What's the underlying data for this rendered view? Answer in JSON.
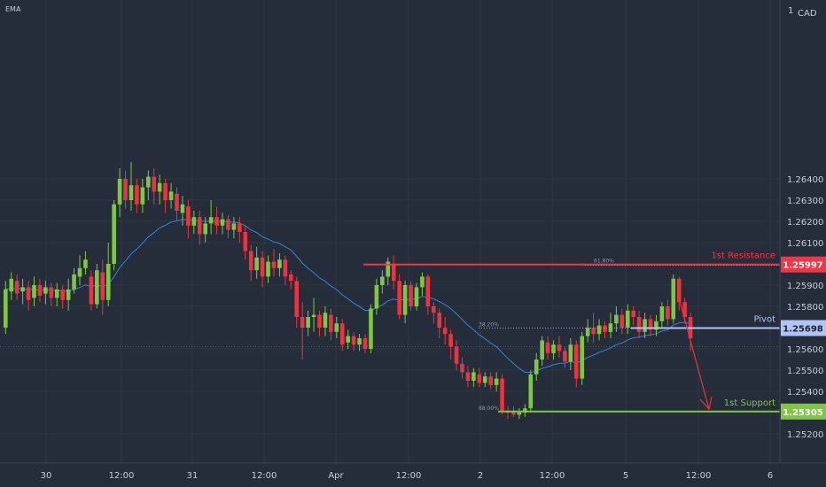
{
  "chart_data": {
    "type": "candlestick",
    "indicator_label": "EMA",
    "currency_label": "CAD",
    "scale_top_label": "1",
    "ylim": [
      1.2517,
      1.2652
    ],
    "y_ticks": [
      "1.26400",
      "1.26300",
      "1.26200",
      "1.26100",
      "1.25900",
      "1.25800",
      "1.25600",
      "1.25500",
      "1.25400",
      "1.25200"
    ],
    "x_ticks": [
      "30",
      "12:00",
      "31",
      "12:00",
      "Apr",
      "12:00",
      "2",
      "12:00",
      "5",
      "12:00",
      "6"
    ],
    "levels": [
      {
        "name": "1st Resistance",
        "value": 1.25997,
        "price_label": "1.25997",
        "color": "#f23645",
        "fib_label": "61.80%"
      },
      {
        "name": "Pivot",
        "value": 1.25698,
        "price_label": "1.25698",
        "color": "#b2c3f5",
        "fib_label": "38.20%"
      },
      {
        "name": "1st Support",
        "value": 1.25305,
        "price_label": "1.25305",
        "color": "#7ec643",
        "fib_label": "88.00%"
      }
    ],
    "current_price_line": 1.2561,
    "colors": {
      "up": "#7ec643",
      "down": "#e8353f",
      "ema": "#2f86d6",
      "background": "#252d3b",
      "text": "#c8ccd6"
    },
    "candles": [
      [
        1.257,
        1.2588,
        1.2567,
        1.2592
      ],
      [
        1.2587,
        1.2593,
        1.2583,
        1.2596
      ],
      [
        1.2592,
        1.2586,
        1.2583,
        1.2595
      ],
      [
        1.2587,
        1.2589,
        1.2581,
        1.2593
      ],
      [
        1.2589,
        1.2583,
        1.2578,
        1.2592
      ],
      [
        1.2584,
        1.259,
        1.258,
        1.2594
      ],
      [
        1.259,
        1.2585,
        1.2582,
        1.2593
      ],
      [
        1.2586,
        1.2589,
        1.2581,
        1.2592
      ],
      [
        1.2589,
        1.2584,
        1.258,
        1.2591
      ],
      [
        1.2584,
        1.2588,
        1.258,
        1.2591
      ],
      [
        1.2588,
        1.2583,
        1.2579,
        1.259
      ],
      [
        1.2583,
        1.2588,
        1.2578,
        1.2593
      ],
      [
        1.2588,
        1.2595,
        1.2586,
        1.2598
      ],
      [
        1.2594,
        1.2598,
        1.259,
        1.2604
      ],
      [
        1.2598,
        1.2602,
        1.2595,
        1.2606
      ],
      [
        1.2594,
        1.2581,
        1.2578,
        1.2597
      ],
      [
        1.2581,
        1.2597,
        1.2579,
        1.26
      ],
      [
        1.2596,
        1.2583,
        1.2576,
        1.2602
      ],
      [
        1.2583,
        1.26,
        1.258,
        1.261
      ],
      [
        1.26,
        1.2628,
        1.2597,
        1.263
      ],
      [
        1.2628,
        1.264,
        1.2622,
        1.2645
      ],
      [
        1.264,
        1.263,
        1.2626,
        1.2644
      ],
      [
        1.263,
        1.2637,
        1.2625,
        1.2648
      ],
      [
        1.2637,
        1.2628,
        1.2624,
        1.264
      ],
      [
        1.2628,
        1.2636,
        1.2624,
        1.264
      ],
      [
        1.2636,
        1.2641,
        1.263,
        1.2644
      ],
      [
        1.2641,
        1.2634,
        1.2628,
        1.2645
      ],
      [
        1.2634,
        1.2638,
        1.2628,
        1.2642
      ],
      [
        1.2638,
        1.263,
        1.2624,
        1.264
      ],
      [
        1.263,
        1.2634,
        1.2626,
        1.2638
      ],
      [
        1.2633,
        1.2625,
        1.262,
        1.2636
      ],
      [
        1.2624,
        1.2628,
        1.2618,
        1.2632
      ],
      [
        1.2627,
        1.2618,
        1.2612,
        1.263
      ],
      [
        1.2618,
        1.2622,
        1.2614,
        1.2625
      ],
      [
        1.2622,
        1.2614,
        1.2609,
        1.2625
      ],
      [
        1.2614,
        1.2619,
        1.261,
        1.2622
      ],
      [
        1.2619,
        1.2622,
        1.2614,
        1.263
      ],
      [
        1.2622,
        1.2618,
        1.2614,
        1.2627
      ],
      [
        1.2618,
        1.2621,
        1.2614,
        1.2624
      ],
      [
        1.2621,
        1.2616,
        1.2612,
        1.2623
      ],
      [
        1.2616,
        1.2619,
        1.2612,
        1.2622
      ],
      [
        1.2619,
        1.2615,
        1.261,
        1.2622
      ],
      [
        1.2615,
        1.2606,
        1.2602,
        1.2618
      ],
      [
        1.2606,
        1.2597,
        1.2592,
        1.2609
      ],
      [
        1.2597,
        1.2603,
        1.2593,
        1.2608
      ],
      [
        1.2603,
        1.2594,
        1.2589,
        1.2606
      ],
      [
        1.2594,
        1.2601,
        1.2591,
        1.2604
      ],
      [
        1.2601,
        1.2598,
        1.2594,
        1.2607
      ],
      [
        1.2598,
        1.2602,
        1.2594,
        1.2605
      ],
      [
        1.2602,
        1.2594,
        1.259,
        1.2604
      ],
      [
        1.2595,
        1.2592,
        1.2588,
        1.2597
      ],
      [
        1.2592,
        1.2575,
        1.257,
        1.2594
      ],
      [
        1.2575,
        1.257,
        1.2555,
        1.2582
      ],
      [
        1.257,
        1.2575,
        1.2566,
        1.2578
      ],
      [
        1.2575,
        1.2576,
        1.2568,
        1.2584
      ],
      [
        1.2576,
        1.257,
        1.2566,
        1.2578
      ],
      [
        1.257,
        1.2577,
        1.2566,
        1.258
      ],
      [
        1.2576,
        1.2568,
        1.2564,
        1.2579
      ],
      [
        1.2568,
        1.2572,
        1.2565,
        1.2575
      ],
      [
        1.2572,
        1.2562,
        1.2559,
        1.2574
      ],
      [
        1.2563,
        1.2566,
        1.256,
        1.2569
      ],
      [
        1.2566,
        1.2562,
        1.2559,
        1.2568
      ],
      [
        1.2562,
        1.2565,
        1.2559,
        1.2567
      ],
      [
        1.2565,
        1.256,
        1.2558,
        1.2567
      ],
      [
        1.256,
        1.2579,
        1.2558,
        1.2581
      ],
      [
        1.2579,
        1.259,
        1.2576,
        1.2593
      ],
      [
        1.259,
        1.2594,
        1.2586,
        1.2597
      ],
      [
        1.2594,
        1.2601,
        1.259,
        1.2603
      ],
      [
        1.26,
        1.2592,
        1.2588,
        1.2604
      ],
      [
        1.2592,
        1.2576,
        1.2574,
        1.2595
      ],
      [
        1.2576,
        1.259,
        1.2572,
        1.2592
      ],
      [
        1.259,
        1.258,
        1.2578,
        1.2592
      ],
      [
        1.258,
        1.2589,
        1.2578,
        1.2591
      ],
      [
        1.2589,
        1.2594,
        1.2585,
        1.2596
      ],
      [
        1.2594,
        1.258,
        1.2576,
        1.2595
      ],
      [
        1.258,
        1.2577,
        1.2572,
        1.2582
      ],
      [
        1.2577,
        1.257,
        1.2565,
        1.2579
      ],
      [
        1.257,
        1.2567,
        1.2562,
        1.2575
      ],
      [
        1.2567,
        1.2561,
        1.2555,
        1.2569
      ],
      [
        1.2561,
        1.2553,
        1.255,
        1.2564
      ],
      [
        1.2553,
        1.2549,
        1.2546,
        1.2556
      ],
      [
        1.2549,
        1.2545,
        1.2542,
        1.2552
      ],
      [
        1.2545,
        1.2549,
        1.2542,
        1.2551
      ],
      [
        1.2548,
        1.2544,
        1.2542,
        1.2551
      ],
      [
        1.2544,
        1.2547,
        1.2542,
        1.2549
      ],
      [
        1.2547,
        1.2543,
        1.2541,
        1.2549
      ],
      [
        1.2543,
        1.2546,
        1.254,
        1.2549
      ],
      [
        1.2546,
        1.2531,
        1.2529,
        1.2548
      ],
      [
        1.2531,
        1.253,
        1.2527,
        1.2533
      ],
      [
        1.2531,
        1.2529,
        1.2528,
        1.2533
      ],
      [
        1.2529,
        1.253,
        1.2527,
        1.2532
      ],
      [
        1.253,
        1.2532,
        1.2528,
        1.2534
      ],
      [
        1.2532,
        1.2548,
        1.253,
        1.255
      ],
      [
        1.2548,
        1.2555,
        1.2545,
        1.2558
      ],
      [
        1.2555,
        1.2564,
        1.2552,
        1.2566
      ],
      [
        1.2563,
        1.2558,
        1.2555,
        1.2566
      ],
      [
        1.2558,
        1.2562,
        1.2555,
        1.2564
      ],
      [
        1.2562,
        1.2559,
        1.2556,
        1.2566
      ],
      [
        1.2559,
        1.2554,
        1.2551,
        1.2561
      ],
      [
        1.2554,
        1.2562,
        1.255,
        1.2565
      ],
      [
        1.2562,
        1.2546,
        1.2542,
        1.2564
      ],
      [
        1.2546,
        1.2566,
        1.2543,
        1.2568
      ],
      [
        1.2566,
        1.257,
        1.2563,
        1.2574
      ],
      [
        1.257,
        1.2567,
        1.2563,
        1.2577
      ],
      [
        1.2567,
        1.2571,
        1.2564,
        1.2574
      ],
      [
        1.2571,
        1.2568,
        1.2565,
        1.2573
      ],
      [
        1.2568,
        1.2572,
        1.2565,
        1.2577
      ],
      [
        1.2572,
        1.2576,
        1.2568,
        1.258
      ],
      [
        1.2576,
        1.257,
        1.2567,
        1.2579
      ],
      [
        1.257,
        1.2578,
        1.2567,
        1.2581
      ],
      [
        1.2578,
        1.2575,
        1.2571,
        1.258
      ],
      [
        1.2575,
        1.2568,
        1.2565,
        1.2578
      ],
      [
        1.2568,
        1.2574,
        1.2565,
        1.2577
      ],
      [
        1.2574,
        1.2569,
        1.2566,
        1.2576
      ],
      [
        1.2569,
        1.2573,
        1.2566,
        1.2576
      ],
      [
        1.2573,
        1.258,
        1.257,
        1.2582
      ],
      [
        1.258,
        1.2574,
        1.2571,
        1.2583
      ],
      [
        1.2574,
        1.2593,
        1.2572,
        1.2595
      ],
      [
        1.2593,
        1.2582,
        1.2578,
        1.2594
      ],
      [
        1.2582,
        1.2575,
        1.2572,
        1.2584
      ],
      [
        1.2575,
        1.2565,
        1.2559,
        1.2577
      ]
    ]
  }
}
